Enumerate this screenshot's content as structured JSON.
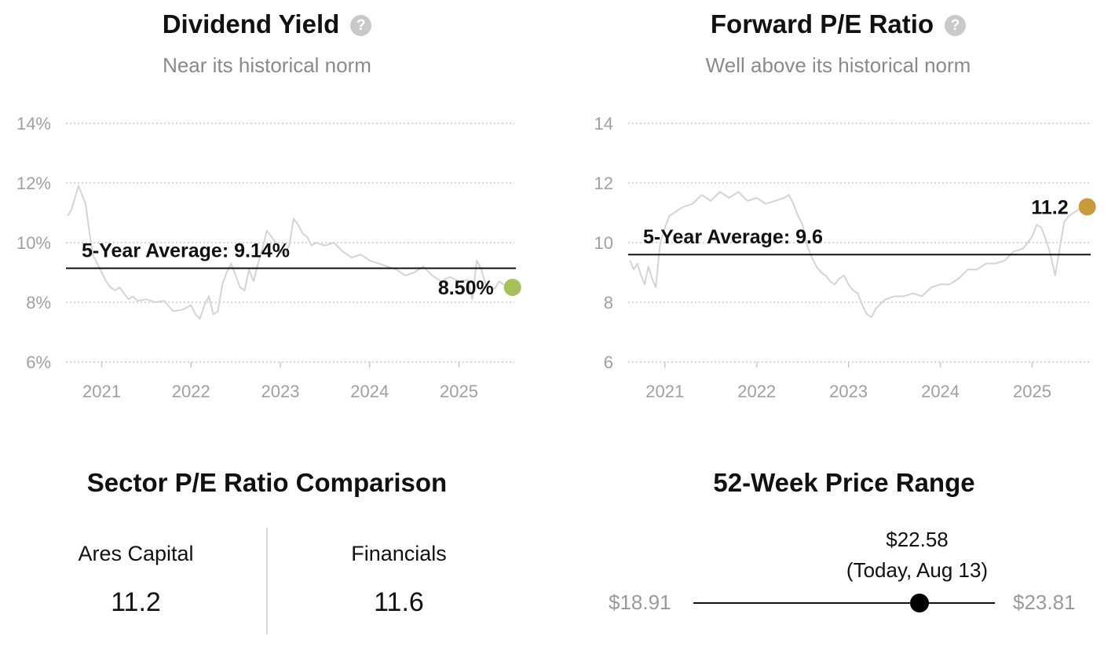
{
  "chart_data": [
    {
      "type": "line",
      "title": "Dividend Yield",
      "subtitle": "Near its historical norm",
      "y_unit": "%",
      "ylim": [
        6,
        14
      ],
      "y_ticks": [
        "6%",
        "8%",
        "10%",
        "12%",
        "14%"
      ],
      "x_ticks": [
        "2021",
        "2022",
        "2023",
        "2024",
        "2025"
      ],
      "x_range": [
        2020.6,
        2025.62
      ],
      "grid": true,
      "average": {
        "label": "5-Year Average: 9.14%",
        "value": 9.14
      },
      "current": {
        "label": "8.50%",
        "value": 8.5,
        "color": "#a8c05a"
      },
      "series": [
        {
          "line_color": "#d4d4d4",
          "x": [
            2020.62,
            2020.66,
            2020.7,
            2020.74,
            2020.78,
            2020.82,
            2020.86,
            2020.9,
            2020.95,
            2021.0,
            2021.05,
            2021.1,
            2021.15,
            2021.2,
            2021.25,
            2021.3,
            2021.35,
            2021.4,
            2021.5,
            2021.6,
            2021.7,
            2021.8,
            2021.9,
            2022.0,
            2022.05,
            2022.1,
            2022.15,
            2022.2,
            2022.25,
            2022.3,
            2022.35,
            2022.4,
            2022.45,
            2022.5,
            2022.55,
            2022.6,
            2022.65,
            2022.7,
            2022.75,
            2022.8,
            2022.85,
            2022.9,
            2022.95,
            2023.0,
            2023.05,
            2023.1,
            2023.15,
            2023.2,
            2023.25,
            2023.3,
            2023.35,
            2023.4,
            2023.5,
            2023.6,
            2023.7,
            2023.8,
            2023.9,
            2024.0,
            2024.1,
            2024.2,
            2024.3,
            2024.4,
            2024.5,
            2024.6,
            2024.7,
            2024.8,
            2024.9,
            2025.0,
            2025.1,
            2025.15,
            2025.2,
            2025.25,
            2025.3,
            2025.35,
            2025.4,
            2025.45,
            2025.5,
            2025.55,
            2025.6
          ],
          "values": [
            10.9,
            11.1,
            11.5,
            11.9,
            11.6,
            11.3,
            10.4,
            9.6,
            9.3,
            9.0,
            8.7,
            8.5,
            8.4,
            8.5,
            8.3,
            8.1,
            8.2,
            8.05,
            8.1,
            8.0,
            8.05,
            7.7,
            7.75,
            7.9,
            7.6,
            7.45,
            7.9,
            8.2,
            7.6,
            7.7,
            8.6,
            9.0,
            9.3,
            8.9,
            8.5,
            8.4,
            9.1,
            8.7,
            9.3,
            9.8,
            10.4,
            10.2,
            10.0,
            9.7,
            9.6,
            9.9,
            10.8,
            10.6,
            10.3,
            10.2,
            9.9,
            10.0,
            9.9,
            10.0,
            9.7,
            9.5,
            9.6,
            9.4,
            9.3,
            9.2,
            9.1,
            8.9,
            9.0,
            9.2,
            8.9,
            8.7,
            8.85,
            8.7,
            8.75,
            8.1,
            9.4,
            9.1,
            8.6,
            8.5,
            8.45,
            8.7,
            8.6,
            8.5,
            8.5
          ]
        }
      ]
    },
    {
      "type": "line",
      "title": "Forward P/E Ratio",
      "subtitle": "Well above its historical norm",
      "ylim": [
        6,
        14
      ],
      "y_ticks": [
        "6",
        "8",
        "10",
        "12",
        "14"
      ],
      "x_ticks": [
        "2021",
        "2022",
        "2023",
        "2024",
        "2025"
      ],
      "x_range": [
        2020.6,
        2025.62
      ],
      "grid": true,
      "average": {
        "label": "5-Year Average: 9.6",
        "value": 9.6
      },
      "current": {
        "label": "11.2",
        "value": 11.2,
        "color": "#c99a3c"
      },
      "series": [
        {
          "line_color": "#d4d4d4",
          "x": [
            2020.62,
            2020.66,
            2020.7,
            2020.74,
            2020.78,
            2020.82,
            2020.86,
            2020.9,
            2020.95,
            2021.0,
            2021.05,
            2021.1,
            2021.2,
            2021.3,
            2021.4,
            2021.5,
            2021.6,
            2021.7,
            2021.8,
            2021.9,
            2022.0,
            2022.1,
            2022.2,
            2022.3,
            2022.35,
            2022.4,
            2022.45,
            2022.5,
            2022.55,
            2022.6,
            2022.65,
            2022.7,
            2022.75,
            2022.8,
            2022.85,
            2022.9,
            2022.95,
            2023.0,
            2023.05,
            2023.1,
            2023.15,
            2023.2,
            2023.25,
            2023.3,
            2023.4,
            2023.5,
            2023.6,
            2023.7,
            2023.8,
            2023.9,
            2024.0,
            2024.1,
            2024.2,
            2024.3,
            2024.4,
            2024.5,
            2024.6,
            2024.7,
            2024.8,
            2024.9,
            2025.0,
            2025.05,
            2025.1,
            2025.15,
            2025.2,
            2025.25,
            2025.3,
            2025.35,
            2025.4,
            2025.45,
            2025.5,
            2025.55,
            2025.6
          ],
          "values": [
            9.4,
            9.1,
            9.3,
            8.9,
            8.6,
            9.2,
            8.8,
            8.5,
            10.0,
            10.5,
            10.9,
            11.0,
            11.2,
            11.3,
            11.6,
            11.4,
            11.7,
            11.5,
            11.7,
            11.4,
            11.5,
            11.3,
            11.4,
            11.5,
            11.6,
            11.3,
            10.9,
            10.6,
            9.9,
            9.5,
            9.2,
            9.0,
            8.9,
            8.7,
            8.6,
            8.8,
            8.9,
            8.6,
            8.4,
            8.3,
            7.9,
            7.6,
            7.5,
            7.8,
            8.1,
            8.2,
            8.2,
            8.3,
            8.2,
            8.5,
            8.6,
            8.6,
            8.8,
            9.1,
            9.1,
            9.3,
            9.3,
            9.4,
            9.7,
            9.8,
            10.2,
            10.6,
            10.5,
            10.1,
            9.6,
            8.9,
            9.8,
            10.7,
            10.9,
            11.0,
            11.1,
            11.2,
            11.2
          ]
        }
      ]
    }
  ],
  "sector": {
    "title": "Sector P/E Ratio Comparison",
    "left_name": "Ares Capital",
    "left_value": "11.2",
    "right_name": "Financials",
    "right_value": "11.6"
  },
  "range": {
    "title": "52-Week Price Range",
    "low": "$18.91",
    "high": "$23.81",
    "current_price": "$22.58",
    "current_note": "(Today, Aug 13)",
    "current_fraction": 0.75
  }
}
